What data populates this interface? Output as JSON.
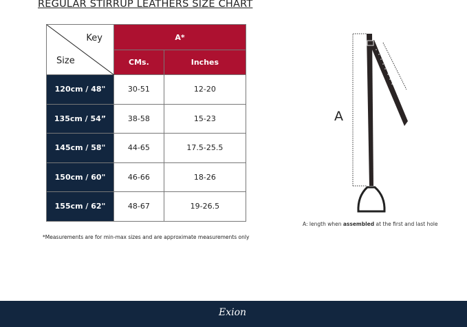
{
  "title": "REGULAR STIRRUP LEATHERS  SIZE CHART",
  "table": {
    "key_label": "Key",
    "size_label": "Size",
    "group_header": "A*",
    "columns": [
      "CMs.",
      "Inches"
    ],
    "rows": [
      {
        "size": "120cm / 48\"",
        "cms": "30-51",
        "inches": "12-20"
      },
      {
        "size": "135cm / 54”",
        "cms": "38-58",
        "inches": "15-23"
      },
      {
        "size": "145cm / 58\"",
        "cms": "44-65",
        "inches": "17.5-25.5"
      },
      {
        "size": "150cm / 60\"",
        "cms": "46-66",
        "inches": "18-26"
      },
      {
        "size": "155cm / 62\"",
        "cms": "48-67",
        "inches": "19-26.5"
      }
    ]
  },
  "note": "*Measurements are for min-max sizes and are approximate measurements only",
  "diagram": {
    "label": "A",
    "caption_pre": "A: length when ",
    "caption_bold": "assembled",
    "caption_post": " at the first and last hole"
  },
  "footer": {
    "logo": "Exion"
  },
  "colors": {
    "header": "#ad1130",
    "size_col": "#12263f",
    "footer": "#12263f"
  }
}
